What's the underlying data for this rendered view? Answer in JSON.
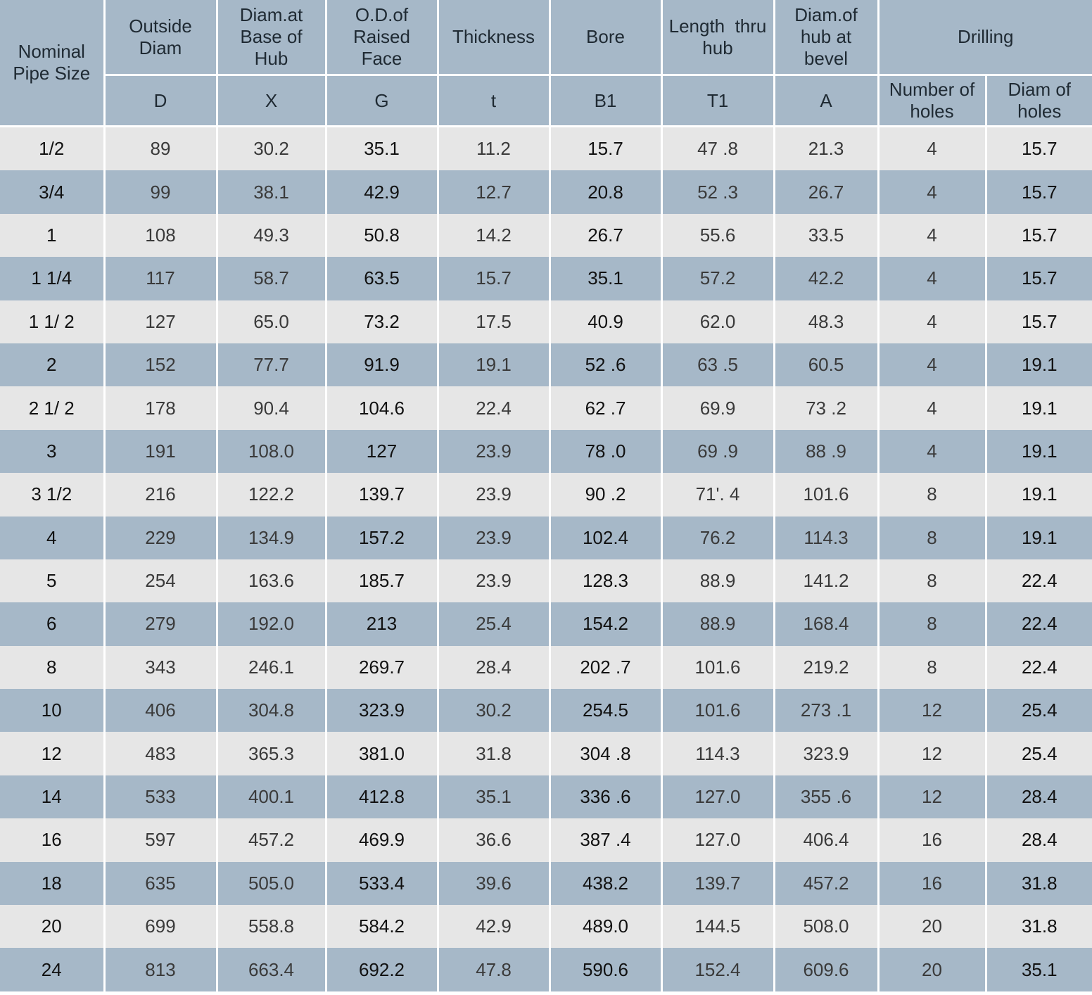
{
  "table": {
    "header_top": {
      "nominal_pipe_size": "Nominal Pipe Size",
      "outside_diam": "Outside Diam",
      "diam_base_hub": "Diam.at Base of Hub",
      "od_raised_face": "O.D.of Raised Face",
      "thickness": "Thickness",
      "bore": "Bore",
      "length_thru_hub": "Length  thru hub",
      "diam_hub_bevel": "Diam.of hub at bevel",
      "drilling": "Drilling"
    },
    "header_symbols": {
      "D": "D",
      "X": "X",
      "G": "G",
      "t": "t",
      "B1": "B1",
      "T1": "T1",
      "A": "A",
      "number_of_holes": "Number of holes",
      "diam_of_holes": "Diam of holes"
    },
    "rows": [
      [
        "1/2",
        "89",
        "30.2",
        "35.1",
        "11.2",
        "15.7",
        "47 .8",
        "21.3",
        "4",
        "15.7"
      ],
      [
        "3/4",
        "99",
        "38.1",
        "42.9",
        "12.7",
        "20.8",
        "52 .3",
        "26.7",
        "4",
        "15.7"
      ],
      [
        "1",
        "108",
        "49.3",
        "50.8",
        "14.2",
        "26.7",
        "55.6",
        "33.5",
        "4",
        "15.7"
      ],
      [
        "1 1/4",
        "117",
        "58.7",
        "63.5",
        "15.7",
        "35.1",
        "57.2",
        "42.2",
        "4",
        "15.7"
      ],
      [
        "1 1/ 2",
        "127",
        "65.0",
        "73.2",
        "17.5",
        "40.9",
        "62.0",
        "48.3",
        "4",
        "15.7"
      ],
      [
        "2",
        "152",
        "77.7",
        "91.9",
        "19.1",
        "52 .6",
        "63 .5",
        "60.5",
        "4",
        "19.1"
      ],
      [
        "2 1/ 2",
        "178",
        "90.4",
        "104.6",
        "22.4",
        "62 .7",
        "69.9",
        "73 .2",
        "4",
        "19.1"
      ],
      [
        "3",
        "191",
        "108.0",
        "127",
        "23.9",
        "78 .0",
        "69 .9",
        "88 .9",
        "4",
        "19.1"
      ],
      [
        "3 1/2",
        "216",
        "122.2",
        "139.7",
        "23.9",
        "90 .2",
        "71'. 4",
        "101.6",
        "8",
        "19.1"
      ],
      [
        "4",
        "229",
        "134.9",
        "157.2",
        "23.9",
        "102.4",
        "76.2",
        "114.3",
        "8",
        "19.1"
      ],
      [
        "5",
        "254",
        "163.6",
        "185.7",
        "23.9",
        "128.3",
        "88.9",
        "141.2",
        "8",
        "22.4"
      ],
      [
        "6",
        "279",
        "192.0",
        "213",
        "25.4",
        "154.2",
        "88.9",
        "168.4",
        "8",
        "22.4"
      ],
      [
        "8",
        "343",
        "246.1",
        "269.7",
        "28.4",
        "202 .7",
        "101.6",
        "219.2",
        "8",
        "22.4"
      ],
      [
        "10",
        "406",
        "304.8",
        "323.9",
        "30.2",
        "254.5",
        "101.6",
        "273 .1",
        "12",
        "25.4"
      ],
      [
        "12",
        "483",
        "365.3",
        "381.0",
        "31.8",
        "304 .8",
        "114.3",
        "323.9",
        "12",
        "25.4"
      ],
      [
        "14",
        "533",
        "400.1",
        "412.8",
        "35.1",
        "336 .6",
        "127.0",
        "355 .6",
        "12",
        "28.4"
      ],
      [
        "16",
        "597",
        "457.2",
        "469.9",
        "36.6",
        "387 .4",
        "127.0",
        "406.4",
        "16",
        "28.4"
      ],
      [
        "18",
        "635",
        "505.0",
        "533.4",
        "39.6",
        "438.2",
        "139.7",
        "457.2",
        "16",
        "31.8"
      ],
      [
        "20",
        "699",
        "558.8",
        "584.2",
        "42.9",
        "489.0",
        "144.5",
        "508.0",
        "20",
        "31.8"
      ],
      [
        "24",
        "813",
        "663.4",
        "692.2",
        "47.8",
        "590.6",
        "152.4",
        "609.6",
        "20",
        "35.1"
      ]
    ]
  },
  "colors": {
    "header_bg": "#a6b8c8",
    "row_light": "#e6e6e6",
    "row_dark": "#a6b8c8",
    "grid_line": "#ffffff"
  }
}
